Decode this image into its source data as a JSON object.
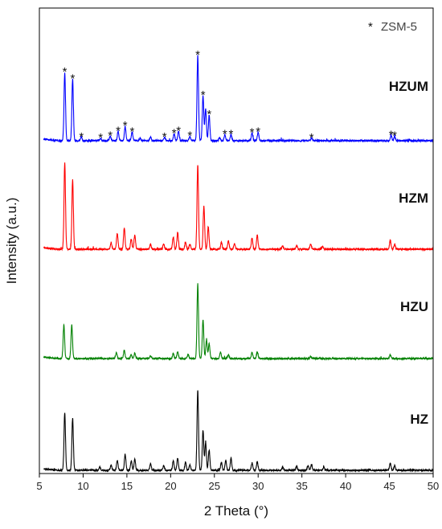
{
  "chart_data": {
    "type": "line",
    "title": "",
    "xlabel": "2 Theta (°)",
    "ylabel": "Intensity (a.u.)",
    "xlim": [
      5,
      50
    ],
    "x_ticks": [
      "5",
      "10",
      "15",
      "20",
      "25",
      "30",
      "35",
      "40",
      "45",
      "50"
    ],
    "y_ticks": "none",
    "grid": false,
    "legend": {
      "marker": "*",
      "text": "ZSM-5",
      "placement": "top-right"
    },
    "series": [
      {
        "name": "HZUM",
        "color": "#0000ff",
        "peaks": [
          {
            "x": 7.9,
            "h": 0.8
          },
          {
            "x": 8.8,
            "h": 0.72
          },
          {
            "x": 9.8,
            "h": 0.04
          },
          {
            "x": 12.0,
            "h": 0.03
          },
          {
            "x": 13.1,
            "h": 0.05
          },
          {
            "x": 14.0,
            "h": 0.11
          },
          {
            "x": 14.8,
            "h": 0.17
          },
          {
            "x": 15.6,
            "h": 0.1
          },
          {
            "x": 16.5,
            "h": 0.03
          },
          {
            "x": 17.7,
            "h": 0.04
          },
          {
            "x": 19.3,
            "h": 0.04
          },
          {
            "x": 20.4,
            "h": 0.08
          },
          {
            "x": 20.9,
            "h": 0.11
          },
          {
            "x": 22.2,
            "h": 0.05
          },
          {
            "x": 23.1,
            "h": 1.0
          },
          {
            "x": 23.7,
            "h": 0.53
          },
          {
            "x": 24.0,
            "h": 0.38
          },
          {
            "x": 24.4,
            "h": 0.3
          },
          {
            "x": 25.6,
            "h": 0.04
          },
          {
            "x": 26.2,
            "h": 0.07
          },
          {
            "x": 26.9,
            "h": 0.07
          },
          {
            "x": 29.3,
            "h": 0.09
          },
          {
            "x": 30.0,
            "h": 0.1
          },
          {
            "x": 36.1,
            "h": 0.03
          },
          {
            "x": 45.2,
            "h": 0.06
          },
          {
            "x": 45.6,
            "h": 0.05
          }
        ]
      },
      {
        "name": "HZM",
        "color": "#ff0000",
        "peaks": [
          {
            "x": 7.9,
            "h": 1.0
          },
          {
            "x": 8.8,
            "h": 0.8
          },
          {
            "x": 13.2,
            "h": 0.07
          },
          {
            "x": 13.9,
            "h": 0.18
          },
          {
            "x": 14.7,
            "h": 0.25
          },
          {
            "x": 15.5,
            "h": 0.12
          },
          {
            "x": 15.9,
            "h": 0.16
          },
          {
            "x": 17.7,
            "h": 0.06
          },
          {
            "x": 19.2,
            "h": 0.06
          },
          {
            "x": 20.3,
            "h": 0.14
          },
          {
            "x": 20.8,
            "h": 0.19
          },
          {
            "x": 21.7,
            "h": 0.08
          },
          {
            "x": 22.2,
            "h": 0.06
          },
          {
            "x": 23.1,
            "h": 0.97
          },
          {
            "x": 23.8,
            "h": 0.5
          },
          {
            "x": 24.3,
            "h": 0.26
          },
          {
            "x": 25.8,
            "h": 0.08
          },
          {
            "x": 26.6,
            "h": 0.1
          },
          {
            "x": 27.3,
            "h": 0.06
          },
          {
            "x": 29.3,
            "h": 0.13
          },
          {
            "x": 29.9,
            "h": 0.16
          },
          {
            "x": 32.8,
            "h": 0.04
          },
          {
            "x": 34.4,
            "h": 0.04
          },
          {
            "x": 36.0,
            "h": 0.06
          },
          {
            "x": 37.4,
            "h": 0.03
          },
          {
            "x": 45.1,
            "h": 0.1
          },
          {
            "x": 45.6,
            "h": 0.06
          }
        ]
      },
      {
        "name": "HZU",
        "color": "#008000",
        "peaks": [
          {
            "x": 7.8,
            "h": 0.45
          },
          {
            "x": 8.7,
            "h": 0.45
          },
          {
            "x": 13.8,
            "h": 0.08
          },
          {
            "x": 14.7,
            "h": 0.11
          },
          {
            "x": 15.5,
            "h": 0.05
          },
          {
            "x": 15.9,
            "h": 0.07
          },
          {
            "x": 17.7,
            "h": 0.04
          },
          {
            "x": 20.3,
            "h": 0.07
          },
          {
            "x": 20.8,
            "h": 0.09
          },
          {
            "x": 22.0,
            "h": 0.06
          },
          {
            "x": 23.1,
            "h": 1.0
          },
          {
            "x": 23.7,
            "h": 0.52
          },
          {
            "x": 24.1,
            "h": 0.25
          },
          {
            "x": 24.4,
            "h": 0.2
          },
          {
            "x": 25.7,
            "h": 0.08
          },
          {
            "x": 26.6,
            "h": 0.05
          },
          {
            "x": 29.3,
            "h": 0.08
          },
          {
            "x": 29.9,
            "h": 0.09
          },
          {
            "x": 36.0,
            "h": 0.03
          },
          {
            "x": 45.1,
            "h": 0.05
          }
        ]
      },
      {
        "name": "HZ",
        "color": "#000000",
        "peaks": [
          {
            "x": 7.9,
            "h": 0.72
          },
          {
            "x": 8.8,
            "h": 0.65
          },
          {
            "x": 11.9,
            "h": 0.04
          },
          {
            "x": 13.2,
            "h": 0.06
          },
          {
            "x": 13.9,
            "h": 0.12
          },
          {
            "x": 14.8,
            "h": 0.2
          },
          {
            "x": 15.5,
            "h": 0.12
          },
          {
            "x": 15.9,
            "h": 0.14
          },
          {
            "x": 17.7,
            "h": 0.08
          },
          {
            "x": 19.2,
            "h": 0.06
          },
          {
            "x": 20.3,
            "h": 0.12
          },
          {
            "x": 20.8,
            "h": 0.15
          },
          {
            "x": 21.7,
            "h": 0.1
          },
          {
            "x": 22.2,
            "h": 0.07
          },
          {
            "x": 23.1,
            "h": 1.0
          },
          {
            "x": 23.7,
            "h": 0.5
          },
          {
            "x": 24.0,
            "h": 0.35
          },
          {
            "x": 24.4,
            "h": 0.25
          },
          {
            "x": 25.8,
            "h": 0.1
          },
          {
            "x": 26.3,
            "h": 0.12
          },
          {
            "x": 26.9,
            "h": 0.15
          },
          {
            "x": 29.3,
            "h": 0.09
          },
          {
            "x": 29.9,
            "h": 0.11
          },
          {
            "x": 32.8,
            "h": 0.04
          },
          {
            "x": 34.4,
            "h": 0.05
          },
          {
            "x": 35.7,
            "h": 0.06
          },
          {
            "x": 36.1,
            "h": 0.07
          },
          {
            "x": 37.5,
            "h": 0.04
          },
          {
            "x": 45.1,
            "h": 0.09
          },
          {
            "x": 45.6,
            "h": 0.06
          }
        ]
      }
    ],
    "annotations": {
      "marker": "*",
      "series": "HZUM",
      "positions": [
        7.9,
        8.8,
        9.8,
        12.0,
        13.1,
        14.0,
        14.8,
        15.6,
        19.3,
        20.4,
        20.9,
        22.2,
        23.1,
        23.7,
        24.4,
        26.2,
        26.9,
        29.3,
        30.0,
        36.1,
        45.2,
        45.6
      ]
    }
  }
}
